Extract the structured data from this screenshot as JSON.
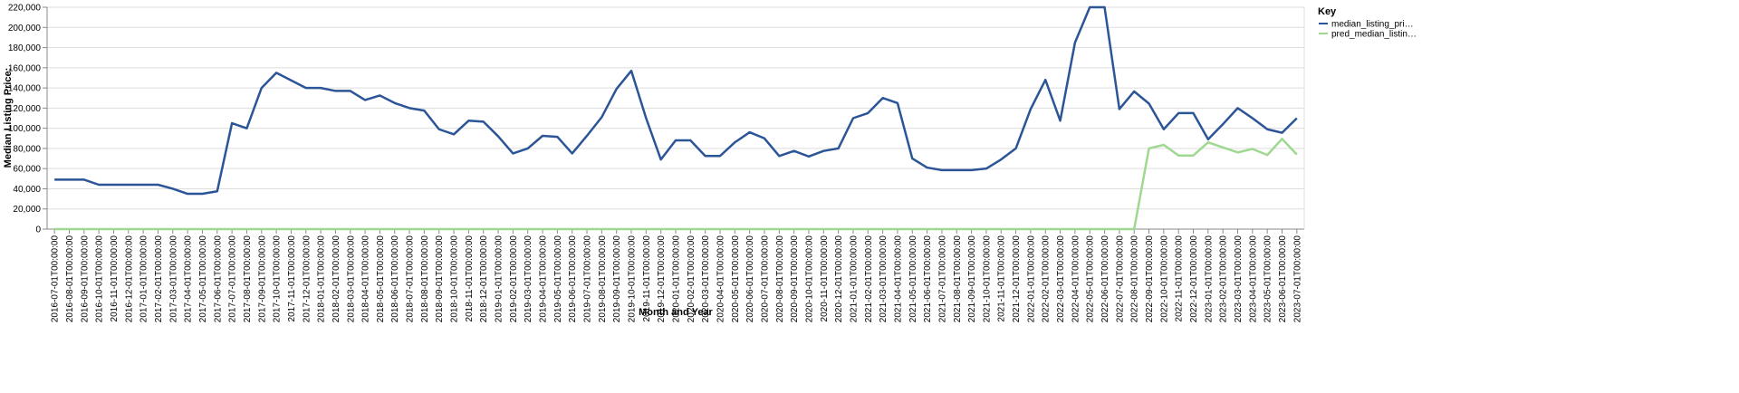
{
  "chart_data": {
    "type": "line",
    "x_label": "Month and Year",
    "y_label": "Median Listing Price:",
    "legend_title": "Key",
    "legend_position": "right",
    "grid": true,
    "categories": [
      "2016-07-01T00:00:00",
      "2016-08-01T00:00:00",
      "2016-09-01T00:00:00",
      "2016-10-01T00:00:00",
      "2016-11-01T00:00:00",
      "2016-12-01T00:00:00",
      "2017-01-01T00:00:00",
      "2017-02-01T00:00:00",
      "2017-03-01T00:00:00",
      "2017-04-01T00:00:00",
      "2017-05-01T00:00:00",
      "2017-06-01T00:00:00",
      "2017-07-01T00:00:00",
      "2017-08-01T00:00:00",
      "2017-09-01T00:00:00",
      "2017-10-01T00:00:00",
      "2017-11-01T00:00:00",
      "2017-12-01T00:00:00",
      "2018-01-01T00:00:00",
      "2018-02-01T00:00:00",
      "2018-03-01T00:00:00",
      "2018-04-01T00:00:00",
      "2018-05-01T00:00:00",
      "2018-06-01T00:00:00",
      "2018-07-01T00:00:00",
      "2018-08-01T00:00:00",
      "2018-09-01T00:00:00",
      "2018-10-01T00:00:00",
      "2018-11-01T00:00:00",
      "2018-12-01T00:00:00",
      "2019-01-01T00:00:00",
      "2019-02-01T00:00:00",
      "2019-03-01T00:00:00",
      "2019-04-01T00:00:00",
      "2019-05-01T00:00:00",
      "2019-06-01T00:00:00",
      "2019-07-01T00:00:00",
      "2019-08-01T00:00:00",
      "2019-09-01T00:00:00",
      "2019-10-01T00:00:00",
      "2019-11-01T00:00:00",
      "2019-12-01T00:00:00",
      "2020-01-01T00:00:00",
      "2020-02-01T00:00:00",
      "2020-03-01T00:00:00",
      "2020-04-01T00:00:00",
      "2020-05-01T00:00:00",
      "2020-06-01T00:00:00",
      "2020-07-01T00:00:00",
      "2020-08-01T00:00:00",
      "2020-09-01T00:00:00",
      "2020-10-01T00:00:00",
      "2020-11-01T00:00:00",
      "2020-12-01T00:00:00",
      "2021-01-01T00:00:00",
      "2021-02-01T00:00:00",
      "2021-03-01T00:00:00",
      "2021-04-01T00:00:00",
      "2021-05-01T00:00:00",
      "2021-06-01T00:00:00",
      "2021-07-01T00:00:00",
      "2021-08-01T00:00:00",
      "2021-09-01T00:00:00",
      "2021-10-01T00:00:00",
      "2021-11-01T00:00:00",
      "2021-12-01T00:00:00",
      "2022-01-01T00:00:00",
      "2022-02-01T00:00:00",
      "2022-03-01T00:00:00",
      "2022-04-01T00:00:00",
      "2022-05-01T00:00:00",
      "2022-06-01T00:00:00",
      "2022-07-01T00:00:00",
      "2022-08-01T00:00:00",
      "2022-09-01T00:00:00",
      "2022-10-01T00:00:00",
      "2022-11-01T00:00:00",
      "2022-12-01T00:00:00",
      "2023-01-01T00:00:00",
      "2023-02-01T00:00:00",
      "2023-03-01T00:00:00",
      "2023-04-01T00:00:00",
      "2023-05-01T00:00:00",
      "2023-06-01T00:00:00",
      "2023-07-01T00:00:00"
    ],
    "series": [
      {
        "name": "median_listing_pri…",
        "color": "#2c5597",
        "values": [
          49000,
          49000,
          49000,
          44000,
          44000,
          44000,
          44000,
          44000,
          40000,
          35000,
          35000,
          37500,
          105000,
          100000,
          140000,
          155000,
          147500,
          140000,
          140000,
          137000,
          137000,
          128000,
          132500,
          125000,
          120000,
          117500,
          99000,
          94000,
          107500,
          106500,
          92000,
          75000,
          80000,
          92500,
          91500,
          75000,
          92500,
          111000,
          139000,
          157000,
          110000,
          69000,
          88000,
          88000,
          72500,
          72500,
          86000,
          96000,
          90000,
          72500,
          77500,
          72000,
          77500,
          80000,
          110000,
          115000,
          130000,
          125000,
          70000,
          61000,
          58500,
          58500,
          58500,
          60000,
          69000,
          80000,
          119000,
          148000,
          107500,
          185000,
          220000,
          220000,
          119000,
          136500,
          124500,
          99000,
          115000,
          115000,
          89000,
          104000,
          120000,
          110000,
          99000,
          95500,
          110000
        ]
      },
      {
        "name": "pred_median_listin…",
        "color": "#9fd891",
        "values": [
          0,
          0,
          0,
          0,
          0,
          0,
          0,
          0,
          0,
          0,
          0,
          0,
          0,
          0,
          0,
          0,
          0,
          0,
          0,
          0,
          0,
          0,
          0,
          0,
          0,
          0,
          0,
          0,
          0,
          0,
          0,
          0,
          0,
          0,
          0,
          0,
          0,
          0,
          0,
          0,
          0,
          0,
          0,
          0,
          0,
          0,
          0,
          0,
          0,
          0,
          0,
          0,
          0,
          0,
          0,
          0,
          0,
          0,
          0,
          0,
          0,
          0,
          0,
          0,
          0,
          0,
          0,
          0,
          0,
          0,
          0,
          0,
          0,
          0,
          80000,
          83500,
          73000,
          73000,
          86000,
          81000,
          76000,
          79500,
          73500,
          89500,
          74000
        ]
      }
    ],
    "ylim": [
      0,
      220000
    ],
    "yticks": [
      0,
      {
        "value": 20000,
        "label": "20,000"
      },
      {
        "value": 40000,
        "label": "40,000"
      },
      {
        "value": 60000,
        "label": "60,000"
      },
      {
        "value": 80000,
        "label": "80,000"
      },
      {
        "value": 100000,
        "label": "100,000"
      },
      {
        "value": 120000,
        "label": "120,000"
      },
      {
        "value": 140000,
        "label": "140,000"
      },
      {
        "value": 160000,
        "label": "160,000"
      },
      {
        "value": 180000,
        "label": "180,000"
      },
      {
        "value": 200000,
        "label": "200,000"
      },
      {
        "value": 220000,
        "label": "220,000"
      }
    ]
  }
}
